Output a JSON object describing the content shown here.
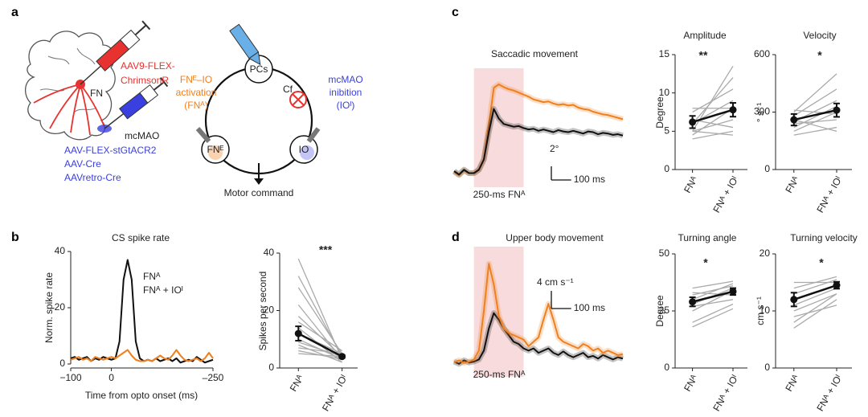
{
  "figure": {
    "panels": [
      "a",
      "b",
      "c",
      "d"
    ],
    "virus_red": [
      "AAV9-FLEX-",
      "ChrimsonR"
    ],
    "fn": "FN",
    "mcmao": "mcMAO",
    "virus_blue": [
      "AAV-FLEX-stGtACR2",
      "AAV-Cre",
      "AAVretro-Cre"
    ],
    "circuit": {
      "pcs": "PCs",
      "cf": "Cf",
      "fne": "FNᴱ",
      "io": "IO",
      "activation": [
        "FNᴱ–IO",
        "activation",
        "(FNᴬ)"
      ],
      "inhibition": [
        "mcMAO",
        "inibition",
        "(IOᴵ)"
      ],
      "output": "Motor command"
    }
  },
  "chart_data": [
    {
      "type": "line",
      "title": "CS spike rate",
      "xlabel": "Time from opto onset (ms)",
      "ylabel": "Norm. spike rate",
      "x": [
        -100,
        -90,
        -80,
        -70,
        -60,
        -50,
        -40,
        -30,
        -20,
        -10,
        0,
        10,
        20,
        30,
        40,
        50,
        60,
        70,
        80,
        90,
        100,
        110,
        120,
        130,
        140,
        150,
        160,
        170,
        180,
        190,
        200,
        210,
        220,
        230,
        240,
        250
      ],
      "series": [
        {
          "name": "FNᴬ",
          "color": "#111111",
          "values": [
            2,
            2.5,
            1.5,
            2,
            2.5,
            1,
            2,
            1.5,
            2.5,
            2,
            1.5,
            2,
            8,
            30,
            37,
            30,
            8,
            2,
            1,
            1.5,
            1,
            2,
            1,
            1.5,
            2,
            1,
            2,
            0.5,
            1,
            1.5,
            1,
            2.5,
            1.5,
            0.5,
            1,
            1.5
          ]
        },
        {
          "name": "FNᴬ + IOᴵ",
          "color": "#f07f1e",
          "values": [
            1.5,
            2,
            2.5,
            1.5,
            2,
            1,
            2.5,
            2,
            1.5,
            2,
            2.5,
            2,
            3,
            4,
            5,
            3,
            1.5,
            1,
            1,
            1.5,
            1,
            2,
            3,
            2,
            1.5,
            3,
            5,
            3,
            1.5,
            1,
            1.5,
            2,
            1,
            2,
            4,
            2
          ]
        }
      ],
      "xlim": [
        -100,
        250
      ],
      "ylim": [
        0,
        40
      ],
      "xticks": [
        {
          "value": -100,
          "label": "−100"
        },
        0,
        {
          "value": 250,
          "label": "–250"
        }
      ],
      "yticks": [
        0,
        20,
        40
      ]
    },
    {
      "type": "paired",
      "ylabel": "Spikes per second",
      "significance": "***",
      "categories": [
        "FNᴬ",
        "FNᴬ + IOᴵ"
      ],
      "category_colors": [
        "#111111",
        "#f07f1e"
      ],
      "pairs": [
        [
          38,
          3
        ],
        [
          32,
          4
        ],
        [
          28,
          5
        ],
        [
          22,
          3
        ],
        [
          18,
          4
        ],
        [
          16,
          6
        ],
        [
          14,
          2
        ],
        [
          12,
          5
        ],
        [
          10,
          3
        ],
        [
          9,
          4
        ],
        [
          8,
          2
        ],
        [
          7,
          5
        ],
        [
          6,
          3
        ],
        [
          5,
          4
        ]
      ],
      "means": [
        12,
        4
      ],
      "errors": [
        2.5,
        0.5
      ],
      "ylim": [
        0,
        40
      ],
      "yticks": [
        0,
        20,
        40
      ]
    },
    {
      "type": "line",
      "title": "Saccadic movement",
      "shade": [
        0,
        250
      ],
      "shade_label": "250-ms FNᴬ",
      "error_band": true,
      "scalebar": {
        "x": 100,
        "y": 2,
        "x_label": "100 ms",
        "y_label": "2°"
      },
      "x": [
        -100,
        -75,
        -50,
        -25,
        0,
        25,
        50,
        75,
        100,
        125,
        150,
        175,
        200,
        225,
        250,
        275,
        300,
        325,
        350,
        375,
        400,
        425,
        450,
        475,
        500,
        525,
        550,
        575,
        600,
        625,
        650,
        675,
        700,
        725,
        750
      ],
      "series": [
        {
          "color": "#f07f1e",
          "values": [
            0.2,
            -0.3,
            0.4,
            0,
            0,
            0.5,
            2,
            7,
            12.5,
            13,
            12.6,
            12.3,
            12.1,
            11.8,
            11.5,
            11.2,
            10.8,
            10.6,
            10.4,
            10.5,
            10.2,
            10,
            10.1,
            9.9,
            10,
            9.6,
            9.4,
            9.3,
            9.0,
            8.8,
            8.6,
            8.5,
            8.3,
            8.1,
            7.9
          ]
        },
        {
          "color": "#111111",
          "values": [
            0.3,
            -0.2,
            0.5,
            0,
            0,
            0.5,
            2,
            6,
            9.4,
            8,
            7.2,
            7,
            6.8,
            6.9,
            6.6,
            6.4,
            6.5,
            6.2,
            6.4,
            6.2,
            6.0,
            6.3,
            6.1,
            6.0,
            6.2,
            6.0,
            5.8,
            6.1,
            6.0,
            5.7,
            5.9,
            5.8,
            5.6,
            5.7,
            5.5
          ]
        }
      ],
      "xlim": [
        -100,
        750
      ],
      "ylim": [
        -1,
        15
      ]
    },
    {
      "type": "paired",
      "title": "Amplitude",
      "ylabel": "Degree",
      "significance": "**",
      "categories": [
        "FNᴬ",
        "FNᴬ + IOᴵ"
      ],
      "category_colors": [
        "#111111",
        "#f07f1e"
      ],
      "pairs": [
        [
          5,
          13.5
        ],
        [
          6,
          12
        ],
        [
          7.5,
          10.5
        ],
        [
          6,
          9
        ],
        [
          4.5,
          8
        ],
        [
          8,
          8
        ],
        [
          5,
          6.5
        ],
        [
          6.5,
          5.5
        ],
        [
          4,
          5
        ],
        [
          5,
          4.5
        ]
      ],
      "means": [
        6.2,
        7.8
      ],
      "errors": [
        0.8,
        0.9
      ],
      "ylim": [
        0,
        15
      ],
      "yticks": [
        0,
        5,
        10,
        15
      ]
    },
    {
      "type": "paired",
      "title": "Velocity",
      "ylabel": "° s⁻¹",
      "significance": "*",
      "categories": [
        "FNᴬ",
        "FNᴬ + IOᴵ"
      ],
      "category_colors": [
        "#111111",
        "#f07f1e"
      ],
      "pairs": [
        [
          300,
          500
        ],
        [
          280,
          420
        ],
        [
          250,
          360
        ],
        [
          220,
          330
        ],
        [
          200,
          300
        ],
        [
          310,
          290
        ],
        [
          240,
          260
        ],
        [
          180,
          220
        ],
        [
          260,
          200
        ]
      ],
      "means": [
        260,
        310
      ],
      "errors": [
        30,
        35
      ],
      "ylim": [
        0,
        600
      ],
      "yticks": [
        0,
        300,
        600
      ]
    },
    {
      "type": "line",
      "title": "Upper body movement",
      "shade": [
        0,
        250
      ],
      "shade_label": "250-ms FNᴬ",
      "error_band": true,
      "scalebar": {
        "x": 100,
        "y": 4,
        "x_label": "100 ms",
        "y_label": "4 cm s⁻¹"
      },
      "x": [
        -100,
        -75,
        -50,
        -25,
        0,
        25,
        50,
        75,
        100,
        125,
        150,
        175,
        200,
        225,
        250,
        275,
        300,
        325,
        350,
        375,
        400,
        425,
        450,
        475,
        500,
        525,
        550,
        575,
        600,
        625,
        650,
        675,
        700,
        725,
        750
      ],
      "series": [
        {
          "color": "#111111",
          "values": [
            0.5,
            0,
            0.8,
            0.3,
            0.5,
            1,
            3,
            8,
            11.5,
            10,
            8,
            6.5,
            5,
            4.5,
            3.5,
            3,
            3.5,
            2.5,
            3,
            3.5,
            2.5,
            2,
            2.8,
            2,
            1.5,
            2,
            2.5,
            1.5,
            1.8,
            1.2,
            2,
            1.5,
            1,
            1.5,
            1.2
          ]
        },
        {
          "color": "#f07f1e",
          "values": [
            0.3,
            0.8,
            0.2,
            0.5,
            1,
            3,
            12,
            22.7,
            18,
            11,
            8,
            7,
            6.5,
            6,
            5.5,
            4,
            5,
            6,
            10,
            13.6,
            10,
            6,
            5,
            4.5,
            4,
            3.5,
            4.5,
            4,
            3,
            3.5,
            2.5,
            3,
            2.5,
            2,
            2.2
          ]
        }
      ],
      "xlim": [
        -100,
        750
      ],
      "ylim": [
        -1.3,
        26
      ]
    },
    {
      "type": "paired",
      "title": "Turning angle",
      "ylabel": "Degree",
      "significance": "*",
      "categories": [
        "FNᴬ",
        "FNᴬ + IOᴵ"
      ],
      "category_colors": [
        "#111111",
        "#f07f1e"
      ],
      "pairs": [
        [
          35,
          38
        ],
        [
          30,
          37
        ],
        [
          32,
          36
        ],
        [
          28,
          35
        ],
        [
          25,
          34
        ],
        [
          33,
          32
        ],
        [
          27,
          30
        ],
        [
          20,
          28
        ],
        [
          18,
          26
        ]
      ],
      "means": [
        29,
        33.5
      ],
      "errors": [
        2,
        1.5
      ],
      "ylim": [
        0,
        50
      ],
      "yticks": [
        0,
        25,
        50
      ]
    },
    {
      "type": "paired",
      "title": "Turning velocity",
      "ylabel": "cm s⁻¹",
      "significance": "*",
      "categories": [
        "FNᴬ",
        "FNᴬ + IOᴵ"
      ],
      "category_colors": [
        "#111111",
        "#f07f1e"
      ],
      "pairs": [
        [
          14,
          16
        ],
        [
          13,
          15.5
        ],
        [
          15,
          15
        ],
        [
          12,
          14.5
        ],
        [
          11,
          14
        ],
        [
          10,
          13
        ],
        [
          8,
          13
        ],
        [
          7,
          12
        ],
        [
          9,
          11
        ]
      ],
      "means": [
        12,
        14.5
      ],
      "errors": [
        1.2,
        0.6
      ],
      "ylim": [
        0,
        20
      ],
      "yticks": [
        0,
        10,
        20
      ]
    }
  ]
}
